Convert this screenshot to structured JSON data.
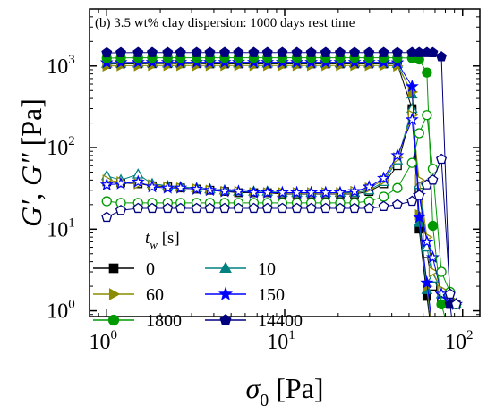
{
  "chart_data": {
    "type": "scatter",
    "title": "(b) 3.5 wt% clay dispersion: 1000 days rest time",
    "xlabel": {
      "symbol": "σ",
      "sub": "0",
      "unit": " [Pa]"
    },
    "ylabel": {
      "symbol": "G′, G″",
      "unit": " [Pa]"
    },
    "x_scale": "log",
    "y_scale": "log",
    "xlim": [
      0.8,
      125
    ],
    "ylim": [
      0.85,
      5000
    ],
    "x_ticks": [
      {
        "base": "10",
        "exp": "0",
        "value": 1
      },
      {
        "base": "10",
        "exp": "1",
        "value": 10
      },
      {
        "base": "10",
        "exp": "2",
        "value": 100
      }
    ],
    "y_ticks": [
      {
        "base": "10",
        "exp": "0",
        "value": 1
      },
      {
        "base": "10",
        "exp": "1",
        "value": 10
      },
      {
        "base": "10",
        "exp": "2",
        "value": 100
      },
      {
        "base": "10",
        "exp": "3",
        "value": 1000
      }
    ],
    "grid": false,
    "legend_title": {
      "symbol": "t",
      "sub": "w",
      "unit": " [s]"
    },
    "legend_position": "bottom-left",
    "series": [
      {
        "name": "0",
        "color": "#000000",
        "marker": "square",
        "x": [
          1.0,
          1.2,
          1.5,
          1.8,
          2.2,
          2.6,
          3.2,
          3.8,
          4.6,
          5.5,
          6.7,
          8.0,
          9.7,
          11.7,
          14.1,
          17.0,
          20.5,
          24.7,
          29.8,
          36.0,
          43.0,
          52.0,
          57.0,
          63.0,
          68.0,
          76.0,
          85.0,
          92.0
        ],
        "g_prime": [
          1050,
          1060,
          1060,
          1065,
          1065,
          1065,
          1065,
          1060,
          1060,
          1060,
          1060,
          1060,
          1060,
          1060,
          1060,
          1060,
          1060,
          1060,
          1060,
          1060,
          1050,
          300,
          10,
          1.5,
          0.4,
          0.3,
          0.3,
          0.3
        ],
        "g_double_prime": [
          38,
          37,
          36,
          34,
          33,
          32,
          31,
          30,
          29,
          28,
          28,
          28,
          27,
          27,
          27,
          27,
          27,
          27,
          29,
          36,
          60,
          280,
          30,
          5,
          2,
          1.3,
          1.2,
          1.2
        ]
      },
      {
        "name": "10",
        "color": "#008080",
        "marker": "triangle",
        "x": [
          1.0,
          1.2,
          1.5,
          1.8,
          2.2,
          2.6,
          3.2,
          3.8,
          4.6,
          5.5,
          6.7,
          8.0,
          9.7,
          11.7,
          14.1,
          17.0,
          20.5,
          24.7,
          29.8,
          36.0,
          43.0,
          52.0,
          57.0,
          63.0,
          68.0,
          76.0,
          85.0,
          92.0
        ],
        "g_prime": [
          1070,
          1075,
          1080,
          1080,
          1080,
          1080,
          1080,
          1080,
          1080,
          1080,
          1080,
          1080,
          1080,
          1080,
          1080,
          1080,
          1080,
          1080,
          1080,
          1080,
          1070,
          450,
          12,
          1.8,
          0.5,
          0.3,
          0.3,
          0.3
        ],
        "g_double_prime": [
          45,
          40,
          47,
          36,
          34,
          33,
          32,
          31,
          30,
          29,
          29,
          29,
          28,
          28,
          28,
          28,
          28,
          28,
          30,
          38,
          70,
          300,
          35,
          6,
          2.5,
          1.6,
          1.3,
          1.2
        ]
      },
      {
        "name": "60",
        "color": "#8b8b00",
        "marker": "triangle-right",
        "x": [
          1.0,
          1.2,
          1.5,
          1.8,
          2.2,
          2.6,
          3.2,
          3.8,
          4.6,
          5.5,
          6.7,
          8.0,
          9.7,
          11.7,
          14.1,
          17.0,
          20.5,
          24.7,
          29.8,
          36.0,
          43.0,
          52.0,
          57.0,
          63.0,
          68.0,
          76.0,
          85.0,
          92.0
        ],
        "g_prime": [
          1000,
          1010,
          1010,
          1015,
          1015,
          1015,
          1015,
          1015,
          1015,
          1015,
          1015,
          1015,
          1015,
          1015,
          1015,
          1015,
          1015,
          1015,
          1015,
          1015,
          1000,
          480,
          15,
          2.0,
          0.5,
          0.3,
          0.3,
          0.3
        ],
        "g_double_prime": [
          40,
          38,
          36,
          35,
          33,
          32,
          31,
          30,
          29,
          29,
          28,
          28,
          28,
          28,
          28,
          28,
          28,
          29,
          32,
          40,
          75,
          250,
          40,
          8,
          3.0,
          1.8,
          1.4,
          1.2
        ]
      },
      {
        "name": "150",
        "color": "#0000ff",
        "marker": "star",
        "x": [
          1.0,
          1.2,
          1.5,
          1.8,
          2.2,
          2.6,
          3.2,
          3.8,
          4.6,
          5.5,
          6.7,
          8.0,
          9.7,
          11.7,
          14.1,
          17.0,
          20.5,
          24.7,
          29.8,
          36.0,
          43.0,
          52.0,
          57.0,
          63.0,
          68.0,
          76.0,
          85.0,
          92.0
        ],
        "g_prime": [
          1100,
          1105,
          1110,
          1110,
          1110,
          1110,
          1110,
          1110,
          1110,
          1110,
          1110,
          1110,
          1110,
          1110,
          1110,
          1110,
          1110,
          1110,
          1110,
          1110,
          1100,
          560,
          14,
          2.2,
          0.6,
          0.3,
          0.3,
          0.3
        ],
        "g_double_prime": [
          35,
          36,
          38,
          33,
          32,
          32,
          31,
          30,
          29,
          29,
          28,
          28,
          28,
          28,
          28,
          28,
          28,
          29,
          33,
          42,
          80,
          220,
          26,
          7,
          4.5,
          1.6,
          1.3,
          1.2
        ]
      },
      {
        "name": "1800",
        "color": "#009900",
        "marker": "circle",
        "x": [
          1.0,
          1.2,
          1.5,
          1.8,
          2.2,
          2.6,
          3.2,
          3.8,
          4.6,
          5.5,
          6.7,
          8.0,
          9.7,
          11.7,
          14.1,
          17.0,
          20.5,
          24.7,
          29.8,
          36.0,
          43.0,
          52.0,
          57.0,
          63.0,
          68.0,
          76.0,
          85.0,
          92.0
        ],
        "g_prime": [
          1250,
          1255,
          1260,
          1260,
          1260,
          1260,
          1260,
          1260,
          1260,
          1260,
          1260,
          1260,
          1260,
          1260,
          1260,
          1260,
          1260,
          1260,
          1260,
          1260,
          1260,
          1250,
          1200,
          830,
          11,
          1.2,
          0.5,
          0.3
        ],
        "g_double_prime": [
          22,
          21,
          21,
          21,
          21,
          21,
          21,
          21,
          21,
          21,
          21,
          21,
          21,
          21,
          21,
          21,
          21,
          21,
          22,
          25,
          32,
          65,
          150,
          250,
          55,
          3,
          1.7,
          1.2
        ]
      },
      {
        "name": "14400",
        "color": "#00007f",
        "marker": "pentagon",
        "x": [
          1.0,
          1.2,
          1.5,
          1.8,
          2.2,
          2.6,
          3.2,
          3.8,
          4.6,
          5.5,
          6.7,
          8.0,
          9.7,
          11.7,
          14.1,
          17.0,
          20.5,
          24.7,
          29.8,
          36.0,
          43.0,
          52.0,
          57.0,
          63.0,
          68.0,
          76.0,
          85.0,
          92.0
        ],
        "g_prime": [
          1450,
          1455,
          1460,
          1460,
          1460,
          1460,
          1460,
          1460,
          1460,
          1460,
          1460,
          1460,
          1460,
          1460,
          1460,
          1460,
          1460,
          1460,
          1460,
          1460,
          1460,
          1460,
          1460,
          1460,
          1455,
          1300,
          1.2,
          0.3
        ],
        "g_double_prime": [
          14,
          17,
          18,
          18,
          18,
          18,
          18,
          18,
          18,
          18,
          18,
          18,
          18,
          18,
          18,
          18,
          18,
          18,
          18,
          19,
          20,
          22,
          26,
          35,
          40,
          72,
          1.6,
          1.2
        ]
      }
    ]
  }
}
